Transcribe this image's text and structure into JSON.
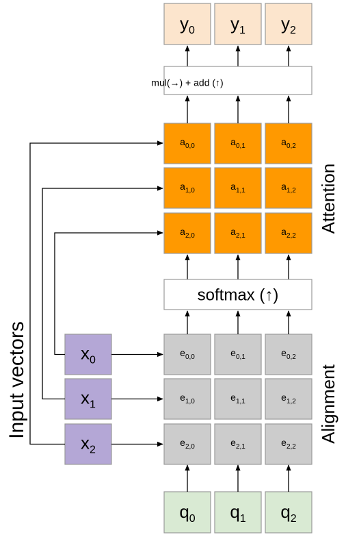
{
  "outputs": [
    {
      "base": "y",
      "sub": "0"
    },
    {
      "base": "y",
      "sub": "1"
    },
    {
      "base": "y",
      "sub": "2"
    }
  ],
  "combine": "mul(→) + add (↑)",
  "attention": {
    "label": "Attention",
    "cells": [
      [
        {
          "base": "a",
          "sub": "0,0"
        },
        {
          "base": "a",
          "sub": "0,1"
        },
        {
          "base": "a",
          "sub": "0,2"
        }
      ],
      [
        {
          "base": "a",
          "sub": "1,0"
        },
        {
          "base": "a",
          "sub": "1,1"
        },
        {
          "base": "a",
          "sub": "1,2"
        }
      ],
      [
        {
          "base": "a",
          "sub": "2,0"
        },
        {
          "base": "a",
          "sub": "2,1"
        },
        {
          "base": "a",
          "sub": "2,2"
        }
      ]
    ]
  },
  "softmax": "softmax (↑)",
  "alignment": {
    "label": "Alignment",
    "cells": [
      [
        {
          "base": "e",
          "sub": "0,0"
        },
        {
          "base": "e",
          "sub": "0,1"
        },
        {
          "base": "e",
          "sub": "0,2"
        }
      ],
      [
        {
          "base": "e",
          "sub": "1,0"
        },
        {
          "base": "e",
          "sub": "1,1"
        },
        {
          "base": "e",
          "sub": "1,2"
        }
      ],
      [
        {
          "base": "e",
          "sub": "2,0"
        },
        {
          "base": "e",
          "sub": "2,1"
        },
        {
          "base": "e",
          "sub": "2,2"
        }
      ]
    ]
  },
  "inputs": {
    "label": "Input vectors",
    "items": [
      {
        "base": "x",
        "sub": "0"
      },
      {
        "base": "x",
        "sub": "1"
      },
      {
        "base": "x",
        "sub": "2"
      }
    ]
  },
  "queries": [
    {
      "base": "q",
      "sub": "0"
    },
    {
      "base": "q",
      "sub": "1"
    },
    {
      "base": "q",
      "sub": "2"
    }
  ]
}
